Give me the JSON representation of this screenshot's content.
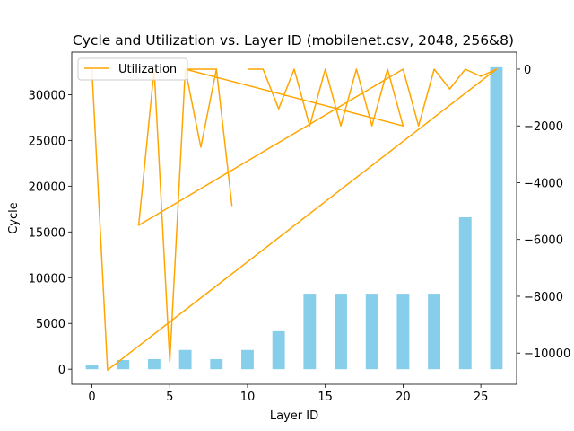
{
  "chart_data": {
    "type": "bar+line",
    "title": "Cycle and Utilization vs. Layer ID (mobilenet.csv, 2048, 256&8)",
    "xlabel": "Layer ID",
    "ylabel": "Cycle",
    "y2label": "",
    "xlim": [
      -1.3,
      27.3
    ],
    "ylim": [
      -1650,
      34650
    ],
    "y2lim": [
      -11100,
      600
    ],
    "xticks": [
      0,
      5,
      10,
      15,
      20,
      25
    ],
    "yticks": [
      0,
      5000,
      10000,
      15000,
      20000,
      25000,
      30000
    ],
    "y2ticks": [
      -10000,
      -8000,
      -6000,
      -4000,
      -2000,
      0
    ],
    "bar_color": "#87ceeb",
    "line_color": "#ffa500",
    "legend": {
      "placement": "top-left",
      "entries": [
        "Utilization"
      ]
    },
    "bars": {
      "name": "Cycle",
      "x": [
        0,
        2,
        4,
        6,
        8,
        10,
        12,
        14,
        16,
        18,
        20,
        22,
        24,
        26
      ],
      "values": [
        420,
        1000,
        1100,
        2100,
        1100,
        2100,
        4150,
        8250,
        8250,
        8250,
        8250,
        8250,
        16600,
        33000
      ]
    },
    "series": [
      {
        "name": "Utilization",
        "x": [
          0,
          1,
          26,
          25,
          24,
          23,
          22,
          21,
          20,
          3,
          4,
          5,
          6,
          7,
          8,
          9,
          8,
          7,
          6,
          20,
          19,
          18,
          17,
          16,
          15,
          14,
          13,
          12,
          11,
          10
        ],
        "values": [
          0,
          -10600,
          0,
          -250,
          0,
          -700,
          0,
          -2000,
          0,
          -5500,
          0,
          -10300,
          0,
          -2750,
          0,
          -4800,
          0,
          0,
          0,
          -2000,
          0,
          -2000,
          0,
          -2000,
          0,
          -2000,
          0,
          -1400,
          0,
          0
        ]
      }
    ]
  }
}
